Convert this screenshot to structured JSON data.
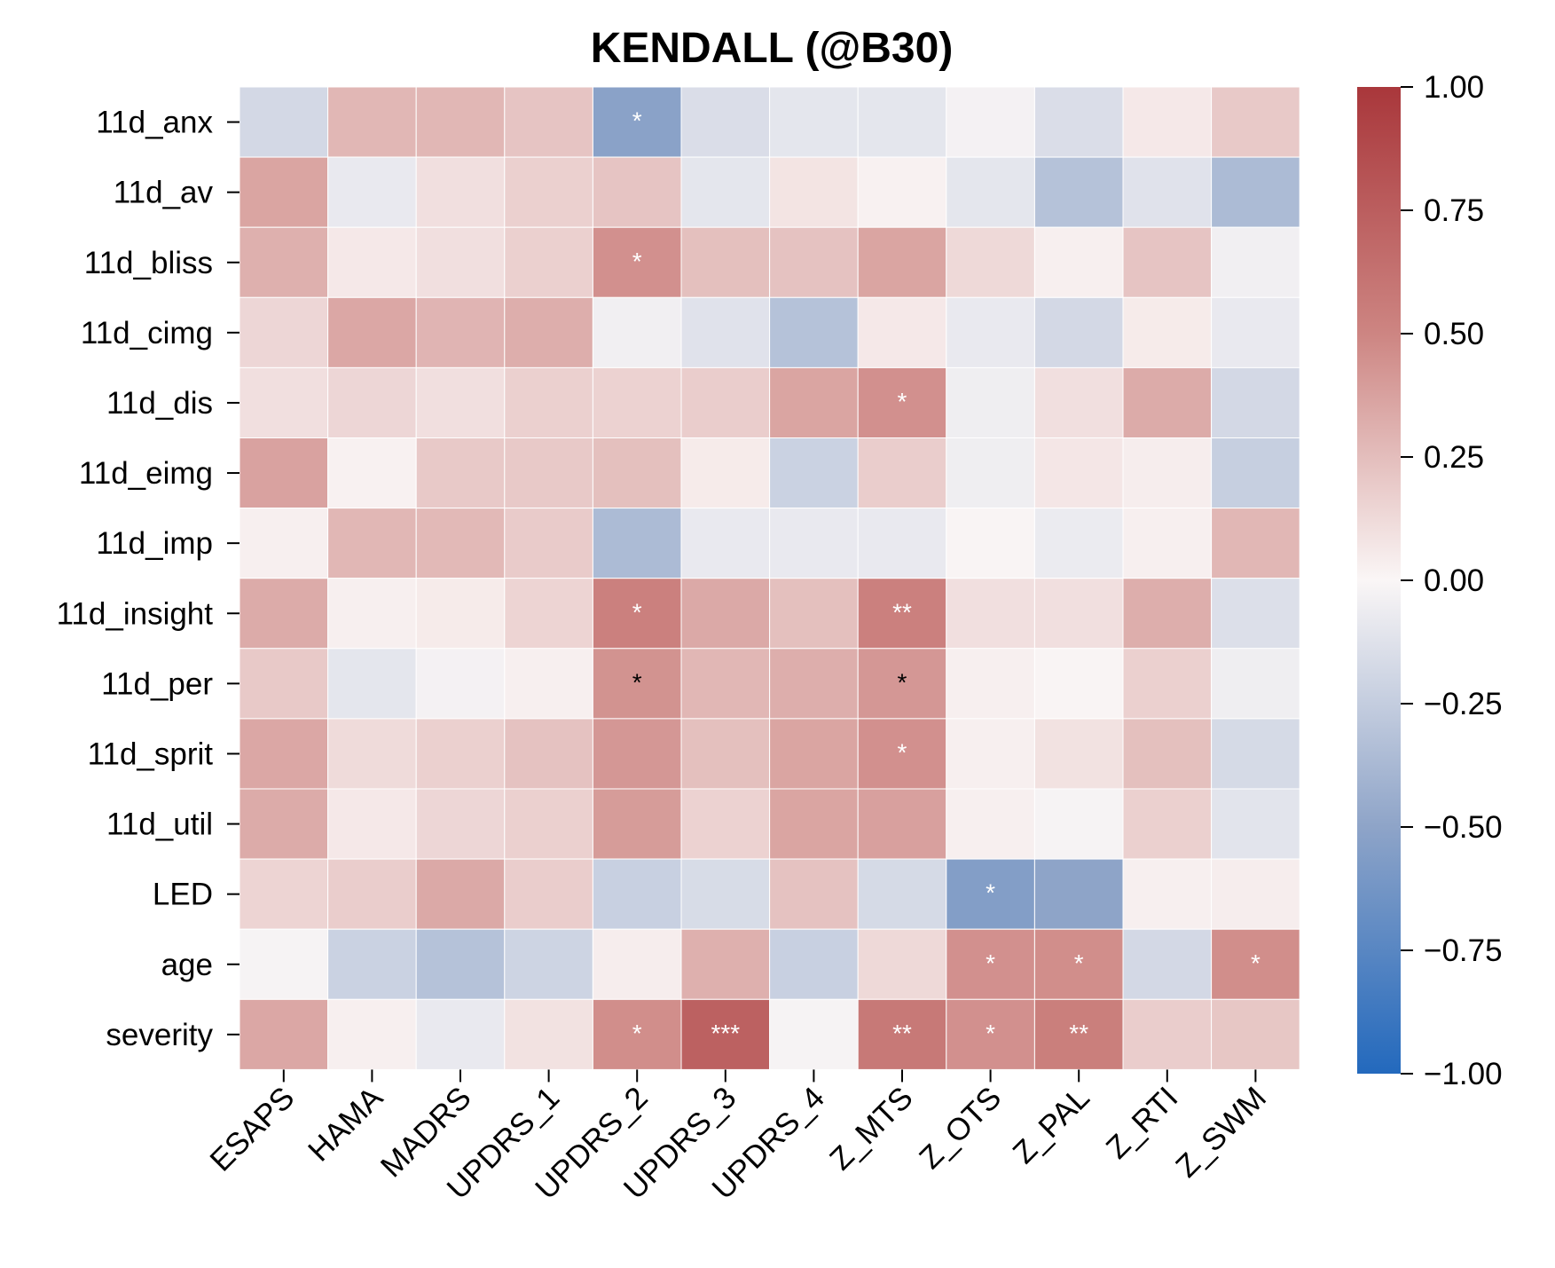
{
  "chart_data": {
    "type": "heatmap",
    "title": "KENDALL (@B30)",
    "xlabel": "",
    "ylabel": "",
    "x_categories": [
      "ESAPS",
      "HAMA",
      "MADRS",
      "UPDRS_1",
      "UPDRS_2",
      "UPDRS_3",
      "UPDRS_4",
      "Z_MTS",
      "Z_OTS",
      "Z_PAL",
      "Z_RTI",
      "Z_SWM"
    ],
    "y_categories": [
      "11d_anx",
      "11d_av",
      "11d_bliss",
      "11d_cimg",
      "11d_dis",
      "11d_eimg",
      "11d_imp",
      "11d_insight",
      "11d_per",
      "11d_sprit",
      "11d_util",
      "LED",
      "age",
      "severity"
    ],
    "values": [
      [
        -0.18,
        0.28,
        0.28,
        0.22,
        -0.52,
        -0.15,
        -0.1,
        -0.1,
        -0.03,
        -0.15,
        0.06,
        0.2
      ],
      [
        0.36,
        -0.08,
        0.1,
        0.17,
        0.22,
        -0.1,
        0.08,
        0.02,
        -0.1,
        -0.32,
        -0.12,
        -0.36
      ],
      [
        0.31,
        0.06,
        0.1,
        0.17,
        0.45,
        0.24,
        0.23,
        0.36,
        0.13,
        0.03,
        0.22,
        -0.04
      ],
      [
        0.14,
        0.35,
        0.29,
        0.32,
        -0.04,
        -0.12,
        -0.32,
        0.06,
        -0.08,
        -0.18,
        0.05,
        -0.08
      ],
      [
        0.1,
        0.14,
        0.1,
        0.17,
        0.16,
        0.18,
        0.36,
        0.45,
        -0.05,
        0.1,
        0.33,
        -0.18
      ],
      [
        0.37,
        0.02,
        0.2,
        0.2,
        0.24,
        0.05,
        -0.22,
        0.18,
        -0.05,
        0.07,
        0.04,
        -0.24
      ],
      [
        0.03,
        0.28,
        0.27,
        0.19,
        -0.36,
        -0.08,
        -0.08,
        -0.08,
        0.01,
        -0.07,
        0.03,
        0.28
      ],
      [
        0.33,
        0.03,
        0.05,
        0.15,
        0.53,
        0.34,
        0.24,
        0.53,
        0.1,
        0.1,
        0.32,
        -0.14
      ],
      [
        0.2,
        -0.1,
        -0.03,
        0.03,
        0.44,
        0.28,
        0.32,
        0.42,
        0.03,
        0.01,
        0.17,
        -0.05
      ],
      [
        0.35,
        0.12,
        0.17,
        0.23,
        0.42,
        0.24,
        0.36,
        0.45,
        0.03,
        0.09,
        0.24,
        -0.17
      ],
      [
        0.33,
        0.06,
        0.14,
        0.17,
        0.4,
        0.16,
        0.36,
        0.38,
        0.03,
        -0.02,
        0.17,
        -0.11
      ],
      [
        0.15,
        0.18,
        0.34,
        0.18,
        -0.23,
        -0.16,
        0.23,
        -0.17,
        -0.55,
        -0.5,
        0.03,
        0.04
      ],
      [
        -0.02,
        -0.22,
        -0.32,
        -0.21,
        0.04,
        0.31,
        -0.23,
        0.13,
        0.45,
        0.46,
        -0.18,
        0.46
      ],
      [
        0.35,
        0.03,
        -0.08,
        0.09,
        0.46,
        0.73,
        -0.02,
        0.58,
        0.45,
        0.54,
        0.18,
        0.21
      ]
    ],
    "annotations": [
      [
        "",
        "",
        "",
        "",
        "*",
        "",
        "",
        "",
        "",
        "",
        "",
        ""
      ],
      [
        "",
        "",
        "",
        "",
        "",
        "",
        "",
        "",
        "",
        "",
        "",
        ""
      ],
      [
        "",
        "",
        "",
        "",
        "*",
        "",
        "",
        "",
        "",
        "",
        "",
        ""
      ],
      [
        "",
        "",
        "",
        "",
        "",
        "",
        "",
        "",
        "",
        "",
        "",
        ""
      ],
      [
        "",
        "",
        "",
        "",
        "",
        "",
        "",
        "*",
        "",
        "",
        "",
        ""
      ],
      [
        "",
        "",
        "",
        "",
        "",
        "",
        "",
        "",
        "",
        "",
        "",
        ""
      ],
      [
        "",
        "",
        "",
        "",
        "",
        "",
        "",
        "",
        "",
        "",
        "",
        ""
      ],
      [
        "",
        "",
        "",
        "",
        "*",
        "",
        "",
        "**",
        "",
        "",
        "",
        ""
      ],
      [
        "",
        "",
        "",
        "",
        "*",
        "",
        "",
        "*",
        "",
        "",
        "",
        ""
      ],
      [
        "",
        "",
        "",
        "",
        "",
        "",
        "",
        "*",
        "",
        "",
        "",
        ""
      ],
      [
        "",
        "",
        "",
        "",
        "",
        "",
        "",
        "",
        "",
        "",
        "",
        ""
      ],
      [
        "",
        "",
        "",
        "",
        "",
        "",
        "",
        "",
        "*",
        "",
        "",
        ""
      ],
      [
        "",
        "",
        "",
        "",
        "",
        "",
        "",
        "",
        "*",
        "*",
        "",
        "*"
      ],
      [
        "",
        "",
        "",
        "",
        "*",
        "***",
        "",
        "**",
        "*",
        "**",
        "",
        ""
      ]
    ],
    "annotation_text_color": [
      [
        "",
        "",
        "",
        "",
        "#ffffff",
        "",
        "",
        "",
        "",
        "",
        "",
        ""
      ],
      [
        "",
        "",
        "",
        "",
        "",
        "",
        "",
        "",
        "",
        "",
        "",
        ""
      ],
      [
        "",
        "",
        "",
        "",
        "#ffffff",
        "",
        "",
        "",
        "",
        "",
        "",
        ""
      ],
      [
        "",
        "",
        "",
        "",
        "",
        "",
        "",
        "",
        "",
        "",
        "",
        ""
      ],
      [
        "",
        "",
        "",
        "",
        "",
        "",
        "",
        "#ffffff",
        "",
        "",
        "",
        ""
      ],
      [
        "",
        "",
        "",
        "",
        "",
        "",
        "",
        "",
        "",
        "",
        "",
        ""
      ],
      [
        "",
        "",
        "",
        "",
        "",
        "",
        "",
        "",
        "",
        "",
        "",
        ""
      ],
      [
        "",
        "",
        "",
        "",
        "#ffffff",
        "",
        "",
        "#ffffff",
        "",
        "",
        "",
        ""
      ],
      [
        "",
        "",
        "",
        "",
        "#000000",
        "",
        "",
        "#000000",
        "",
        "",
        "",
        ""
      ],
      [
        "",
        "",
        "",
        "",
        "",
        "",
        "",
        "#ffffff",
        "",
        "",
        "",
        ""
      ],
      [
        "",
        "",
        "",
        "",
        "",
        "",
        "",
        "",
        "",
        "",
        "",
        ""
      ],
      [
        "",
        "",
        "",
        "",
        "",
        "",
        "",
        "",
        "#ffffff",
        "",
        "",
        ""
      ],
      [
        "",
        "",
        "",
        "",
        "",
        "",
        "",
        "",
        "#ffffff",
        "#ffffff",
        "",
        "#ffffff"
      ],
      [
        "",
        "",
        "",
        "",
        "#ffffff",
        "#ffffff",
        "",
        "#ffffff",
        "#ffffff",
        "#ffffff",
        "",
        ""
      ]
    ],
    "colormap": {
      "name": "vlag",
      "stops": [
        {
          "value": -1.0,
          "color": "#2369bd"
        },
        {
          "value": -0.5,
          "color": "#8ea4c8"
        },
        {
          "value": 0.0,
          "color": "#faf6f6"
        },
        {
          "value": 0.5,
          "color": "#cd8582"
        },
        {
          "value": 1.0,
          "color": "#a9373b"
        }
      ]
    },
    "vmin": -1.0,
    "vmax": 1.0,
    "colorbar_ticks": [
      1.0,
      0.75,
      0.5,
      0.25,
      0.0,
      -0.25,
      -0.5,
      -0.75,
      -1.0
    ],
    "colorbar_tick_labels": [
      "1.00",
      "0.75",
      "0.50",
      "0.25",
      "0.00",
      "−0.25",
      "−0.50",
      "−0.75",
      "−1.00"
    ],
    "grid": false,
    "legend_position": "right"
  }
}
